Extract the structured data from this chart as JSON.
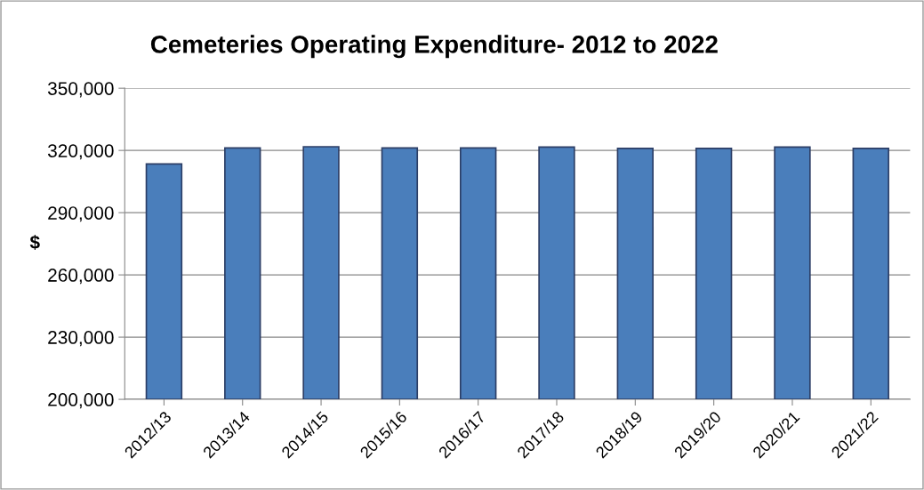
{
  "chart_data": {
    "type": "bar",
    "title": "Cemeteries Operating Expenditure- 2012 to 2022",
    "ylabel": "$",
    "categories": [
      "2012/13",
      "2013/14",
      "2014/15",
      "2015/16",
      "2016/17",
      "2017/18",
      "2018/19",
      "2019/20",
      "2020/21",
      "2021/22"
    ],
    "values": [
      313500,
      321200,
      321800,
      321200,
      321200,
      321600,
      321000,
      321000,
      321600,
      321000
    ],
    "color": "#4a7ebb",
    "ylim": [
      200000,
      350000
    ],
    "yticks": [
      {
        "value": 200000,
        "label": "200,000"
      },
      {
        "value": 230000,
        "label": "230,000"
      },
      {
        "value": 260000,
        "label": "260,000"
      },
      {
        "value": 290000,
        "label": "290,000"
      },
      {
        "value": 320000,
        "label": "320,000"
      },
      {
        "value": 350000,
        "label": "350,000"
      }
    ],
    "grid": "y",
    "legend": false
  }
}
